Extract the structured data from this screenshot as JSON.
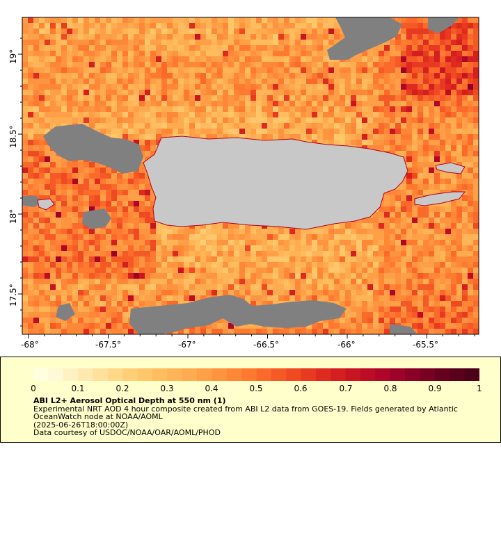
{
  "map": {
    "x_ticks": [
      "-68°",
      "-67.5°",
      "-67°",
      "-66.5°",
      "-66°",
      "-65.5°"
    ],
    "y_ticks": [
      "19°",
      "18.5°",
      "18°",
      "17.5°"
    ],
    "land_color": "#c8c8c8",
    "no_data_color": "#808080",
    "border_color": "#000000"
  },
  "legend": {
    "colorbar_labels": [
      "0",
      "0.1",
      "0.2",
      "0.3",
      "0.4",
      "0.5",
      "0.6",
      "0.7",
      "0.8",
      "0.9",
      "1"
    ],
    "colors": [
      "#ffffe0",
      "#fff9d8",
      "#fff1c4",
      "#ffe9b0",
      "#ffe19c",
      "#ffd888",
      "#ffcf78",
      "#ffc66a",
      "#ffbd60",
      "#ffb458",
      "#ffab50",
      "#ffa048",
      "#ff9440",
      "#ff8838",
      "#ff7a30",
      "#fb6a2a",
      "#f55a26",
      "#ef4a22",
      "#e73a20",
      "#df2a20",
      "#d51e20",
      "#c91422",
      "#bd0c26",
      "#ae0628",
      "#9d022a",
      "#8b0026",
      "#780022",
      "#66001f",
      "#58001c",
      "#4c0019"
    ],
    "title": "ABI L2+ Aerosol Optical Depth at 550 nm (1)",
    "line1": "Experimental NRT AOD 4 hour composite created from ABI L2 data from GOES-19. Fields generated by Atlantic OceanWatch node at NOAA/AOML",
    "line2": "(2025-06-26T18:00:00Z)",
    "line3": "Data courtesy of USDOC/NOAA/OAR/AOML/PHOD"
  }
}
